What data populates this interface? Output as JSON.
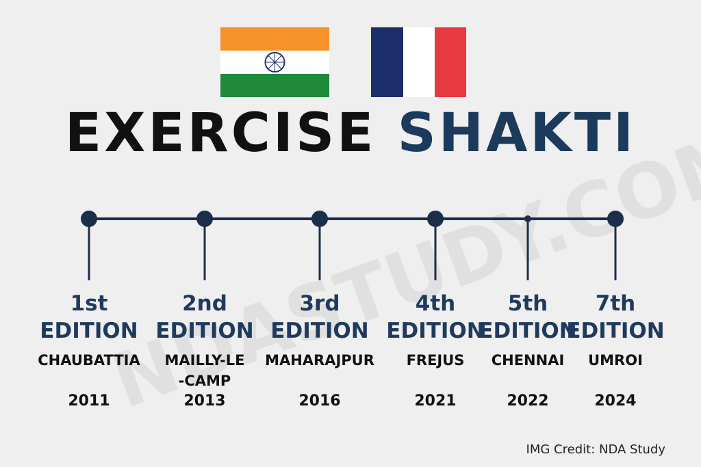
{
  "title": {
    "part1": "EXERCISE",
    "part2": "SHAKTI"
  },
  "watermark": "NDASTUDY.COM",
  "timeline": [
    {
      "number": "1st",
      "label": "EDITION",
      "place": "CHAUBATTIA",
      "year": "2011"
    },
    {
      "number": "2nd",
      "label": "EDITION",
      "place": "MAILLY-LE\n-CAMP",
      "year": "2013"
    },
    {
      "number": "3rd",
      "label": "EDITION",
      "place": "MAHARAJPUR",
      "year": "2016"
    },
    {
      "number": "4th",
      "label": "EDITION",
      "place": "FREJUS",
      "year": "2021"
    },
    {
      "number": "5th",
      "label": "EDITION",
      "place": "CHENNAI",
      "year": "2022"
    },
    {
      "number": "7th",
      "label": "EDITION",
      "place": "UMROI",
      "year": "2024"
    }
  ],
  "credit": "IMG Credit: NDA Study"
}
